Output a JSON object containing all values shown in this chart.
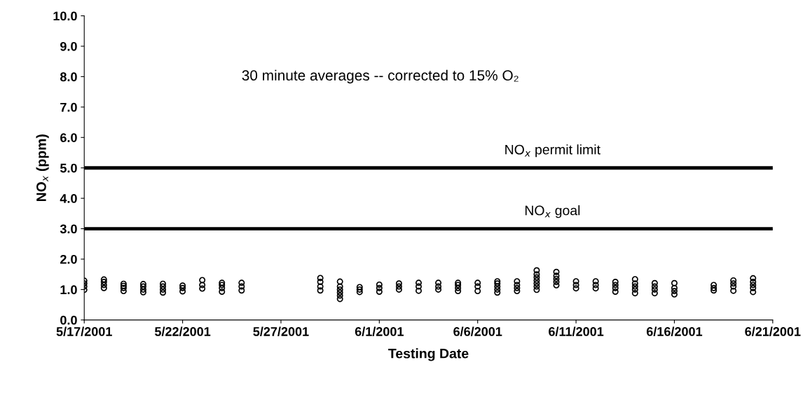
{
  "chart_data": {
    "type": "scatter",
    "xlabel": "Testing Date",
    "ylabel": "NO$_{x}$ (ppm)",
    "annotations": [
      "30 minute averages -- corrected to 15% O₂"
    ],
    "marker": "circle",
    "grid": false,
    "xlim": [
      "2001-05-17",
      "2001-06-21"
    ],
    "xticks": [
      {
        "value": "2001-05-17",
        "label": "5/17/2001"
      },
      {
        "value": "2001-05-22",
        "label": "5/22/2001"
      },
      {
        "value": "2001-05-27",
        "label": "5/27/2001"
      },
      {
        "value": "2001-06-01",
        "label": "6/1/2001"
      },
      {
        "value": "2001-06-06",
        "label": "6/6/2001"
      },
      {
        "value": "2001-06-11",
        "label": "6/11/2001"
      },
      {
        "value": "2001-06-16",
        "label": "6/16/2001"
      },
      {
        "value": "2001-06-21",
        "label": "6/21/2001"
      }
    ],
    "ylim": [
      0,
      10
    ],
    "yticks": [
      {
        "value": 0,
        "label": "0.0"
      },
      {
        "value": 1,
        "label": "1.0"
      },
      {
        "value": 2,
        "label": "2.0"
      },
      {
        "value": 3,
        "label": "3.0"
      },
      {
        "value": 4,
        "label": "4.0"
      },
      {
        "value": 5,
        "label": "5.0"
      },
      {
        "value": 6,
        "label": "6.0"
      },
      {
        "value": 7,
        "label": "7.0"
      },
      {
        "value": 8,
        "label": "8.0"
      },
      {
        "value": 9,
        "label": "9.0"
      },
      {
        "value": 10,
        "label": "10.0"
      }
    ],
    "ref_lines": [
      {
        "axis": "y",
        "value": 5,
        "label": "NO$_{x}$ permit limit",
        "color": "#000000"
      },
      {
        "axis": "y",
        "value": 3,
        "label": "NO$_{x}$ goal",
        "color": "#000000"
      }
    ],
    "series": [
      {
        "color": "#000000",
        "x": [
          "2001-05-17",
          "2001-05-17",
          "2001-05-17",
          "2001-05-17",
          "2001-05-18",
          "2001-05-18",
          "2001-05-18",
          "2001-05-18",
          "2001-05-19",
          "2001-05-19",
          "2001-05-19",
          "2001-05-19",
          "2001-05-20",
          "2001-05-20",
          "2001-05-20",
          "2001-05-20",
          "2001-05-21",
          "2001-05-21",
          "2001-05-21",
          "2001-05-21",
          "2001-05-22",
          "2001-05-22",
          "2001-05-22",
          "2001-05-23",
          "2001-05-23",
          "2001-05-23",
          "2001-05-24",
          "2001-05-24",
          "2001-05-24",
          "2001-05-24",
          "2001-05-25",
          "2001-05-25",
          "2001-05-25",
          "2001-05-29",
          "2001-05-29",
          "2001-05-29",
          "2001-05-29",
          "2001-05-30",
          "2001-05-30",
          "2001-05-30",
          "2001-05-30",
          "2001-05-30",
          "2001-05-30",
          "2001-05-31",
          "2001-05-31",
          "2001-05-31",
          "2001-06-01",
          "2001-06-01",
          "2001-06-01",
          "2001-06-02",
          "2001-06-02",
          "2001-06-02",
          "2001-06-03",
          "2001-06-03",
          "2001-06-03",
          "2001-06-04",
          "2001-06-04",
          "2001-06-04",
          "2001-06-05",
          "2001-06-05",
          "2001-06-05",
          "2001-06-05",
          "2001-06-06",
          "2001-06-06",
          "2001-06-06",
          "2001-06-07",
          "2001-06-07",
          "2001-06-07",
          "2001-06-07",
          "2001-06-07",
          "2001-06-08",
          "2001-06-08",
          "2001-06-08",
          "2001-06-08",
          "2001-06-09",
          "2001-06-09",
          "2001-06-09",
          "2001-06-09",
          "2001-06-09",
          "2001-06-09",
          "2001-06-09",
          "2001-06-10",
          "2001-06-10",
          "2001-06-10",
          "2001-06-10",
          "2001-06-10",
          "2001-06-11",
          "2001-06-11",
          "2001-06-11",
          "2001-06-12",
          "2001-06-12",
          "2001-06-12",
          "2001-06-13",
          "2001-06-13",
          "2001-06-13",
          "2001-06-13",
          "2001-06-14",
          "2001-06-14",
          "2001-06-14",
          "2001-06-14",
          "2001-06-14",
          "2001-06-15",
          "2001-06-15",
          "2001-06-15",
          "2001-06-15",
          "2001-06-16",
          "2001-06-16",
          "2001-06-16",
          "2001-06-16",
          "2001-06-18",
          "2001-06-18",
          "2001-06-18",
          "2001-06-19",
          "2001-06-19",
          "2001-06-19",
          "2001-06-19",
          "2001-06-20",
          "2001-06-20",
          "2001-06-20",
          "2001-06-20",
          "2001-06-20"
        ],
        "values": [
          0.99,
          1.1,
          1.2,
          1.29,
          1.05,
          1.15,
          1.25,
          1.33,
          0.95,
          1.05,
          1.12,
          1.19,
          0.91,
          1.0,
          1.1,
          1.18,
          0.9,
          1.0,
          1.1,
          1.19,
          0.94,
          1.05,
          1.13,
          1.03,
          1.15,
          1.31,
          0.93,
          1.05,
          1.15,
          1.22,
          0.97,
          1.1,
          1.22,
          0.97,
          1.1,
          1.25,
          1.38,
          0.69,
          0.8,
          0.9,
          1.0,
          1.1,
          1.26,
          0.92,
          1.0,
          1.08,
          0.93,
          1.05,
          1.16,
          1.0,
          1.1,
          1.2,
          0.96,
          1.1,
          1.22,
          1.0,
          1.1,
          1.22,
          0.95,
          1.05,
          1.15,
          1.22,
          0.95,
          1.1,
          1.22,
          0.9,
          1.0,
          1.1,
          1.2,
          1.27,
          0.95,
          1.05,
          1.15,
          1.27,
          0.99,
          1.1,
          1.2,
          1.3,
          1.4,
          1.5,
          1.63,
          1.14,
          1.25,
          1.35,
          1.45,
          1.58,
          1.04,
          1.15,
          1.27,
          1.04,
          1.15,
          1.27,
          0.93,
          1.05,
          1.15,
          1.25,
          0.88,
          1.0,
          1.1,
          1.2,
          1.34,
          0.88,
          1.0,
          1.1,
          1.21,
          0.84,
          0.95,
          1.05,
          1.21,
          0.97,
          1.05,
          1.15,
          0.96,
          1.1,
          1.2,
          1.3,
          0.92,
          1.05,
          1.15,
          1.25,
          1.37
        ]
      }
    ]
  }
}
